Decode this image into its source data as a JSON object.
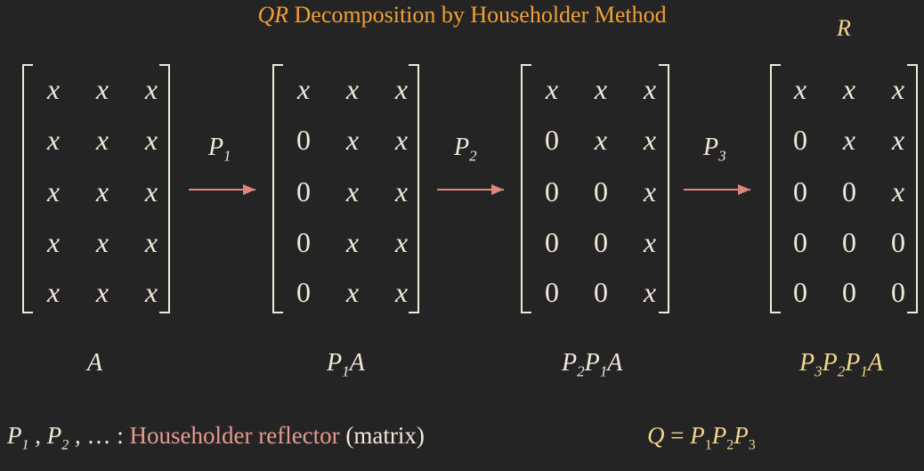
{
  "title": {
    "prefix": "QR",
    "text": "Decomposition by Householder Method"
  },
  "r_label": "R",
  "matrices": [
    {
      "rows": [
        [
          "x",
          "x",
          "x"
        ],
        [
          "x",
          "x",
          "x"
        ],
        [
          "x",
          "x",
          "x"
        ],
        [
          "x",
          "x",
          "x"
        ],
        [
          "x",
          "x",
          "x"
        ]
      ],
      "caption_symbol": "A"
    },
    {
      "rows": [
        [
          "x",
          "x",
          "x"
        ],
        [
          "0",
          "x",
          "x"
        ],
        [
          "0",
          "x",
          "x"
        ],
        [
          "0",
          "x",
          "x"
        ],
        [
          "0",
          "x",
          "x"
        ]
      ]
    },
    {
      "rows": [
        [
          "x",
          "x",
          "x"
        ],
        [
          "0",
          "x",
          "x"
        ],
        [
          "0",
          "0",
          "x"
        ],
        [
          "0",
          "0",
          "x"
        ],
        [
          "0",
          "0",
          "x"
        ]
      ]
    },
    {
      "rows": [
        [
          "x",
          "x",
          "x"
        ],
        [
          "0",
          "x",
          "x"
        ],
        [
          "0",
          "0",
          "x"
        ],
        [
          "0",
          "0",
          "0"
        ],
        [
          "0",
          "0",
          "0"
        ]
      ]
    }
  ],
  "arrows": [
    {
      "symbol": "P",
      "sub": "1"
    },
    {
      "symbol": "P",
      "sub": "2"
    },
    {
      "symbol": "P",
      "sub": "3"
    }
  ],
  "captions": {
    "c2": {
      "p": "P",
      "s1": "1",
      "a": "A"
    },
    "c3": {
      "p1": "P",
      "s1": "2",
      "p2": "P",
      "s2": "1",
      "a": "A"
    },
    "c4": {
      "p1": "P",
      "s1": "3",
      "p2": "P",
      "s2": "2",
      "p3": "P",
      "s3": "1",
      "a": "A"
    }
  },
  "footer": {
    "p": "P",
    "sub1": "1",
    "sub2": "2",
    "sep": ",",
    "ellipsis": "… :",
    "reflector": "Householder reflector",
    "matrix": "(matrix)",
    "q_lhs": "Q",
    "q_eq": "=",
    "q_sub1": "1",
    "q_sub2": "2",
    "q_sub3": "3"
  },
  "colors": {
    "title": "#f0a032",
    "arrow": "#e0857e",
    "highlight": "#f4d58d",
    "reflector": "#e59a92"
  }
}
